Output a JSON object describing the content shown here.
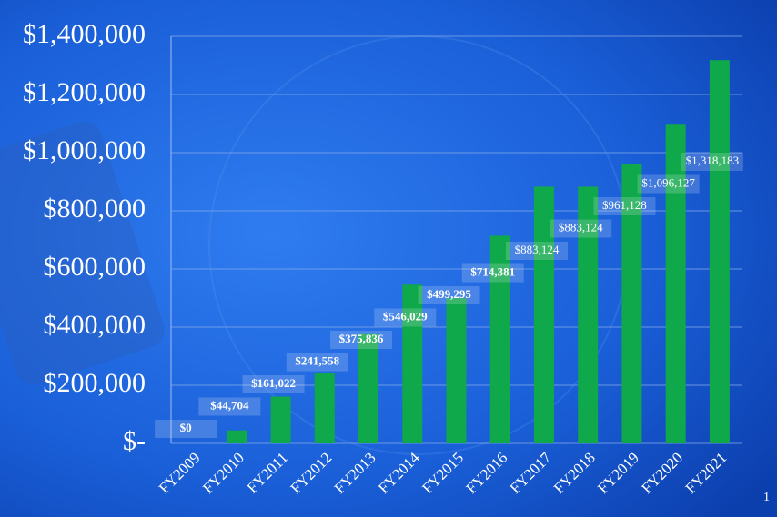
{
  "chart_data": {
    "type": "bar",
    "categories": [
      "FY2009",
      "FY2010",
      "FY2011",
      "FY2012",
      "FY2013",
      "FY2014",
      "FY2015",
      "FY2016",
      "FY2017",
      "FY2018",
      "FY2019",
      "FY2020",
      "FY2021"
    ],
    "values": [
      0,
      44704,
      161022,
      241558,
      375836,
      546029,
      499295,
      714381,
      883124,
      883124,
      961128,
      1096127,
      1318183
    ],
    "value_labels": [
      "$0",
      "$44,704",
      "$161,022",
      "$241,558",
      "$375,836",
      "$546,029",
      "$499,295",
      "$714,381",
      "$883,124",
      "$883,124",
      "$961,128",
      "$1,096,127",
      "$1,318,183"
    ],
    "color": "#0fa84a",
    "ylim": [
      0,
      1400000
    ],
    "yticks": [
      {
        "value": 0,
        "label": "$-"
      },
      {
        "value": 200000,
        "label": "$200,000"
      },
      {
        "value": 400000,
        "label": "$400,000"
      },
      {
        "value": 600000,
        "label": "$600,000"
      },
      {
        "value": 800000,
        "label": "$800,000"
      },
      {
        "value": 1000000,
        "label": "$1,000,000"
      },
      {
        "value": 1200000,
        "label": "$1,200,000"
      },
      {
        "value": 1400000,
        "label": "$1,400,000"
      }
    ],
    "grid": true
  },
  "page_number": "1"
}
